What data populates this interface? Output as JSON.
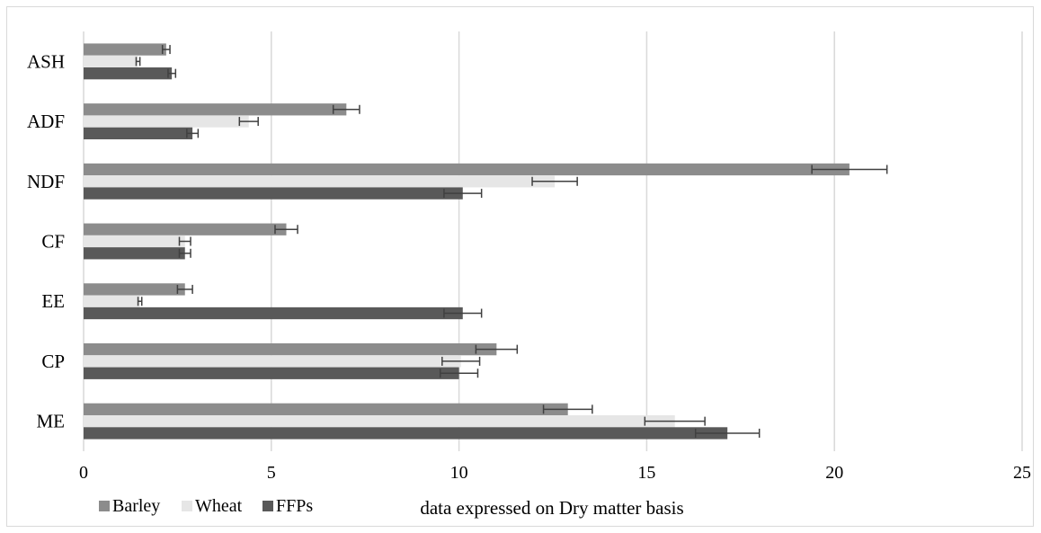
{
  "chart_data": {
    "type": "bar",
    "orientation": "horizontal",
    "title": "",
    "xlabel": "data expressed on Dry matter basis",
    "ylabel": "",
    "categories": [
      "ME",
      "CP",
      "EE",
      "CF",
      "NDF",
      "ADF",
      "ASH"
    ],
    "xlim": [
      0,
      25
    ],
    "xticks": [
      0,
      5,
      10,
      15,
      20,
      25
    ],
    "grid": "vertical",
    "legend": "bottom-left",
    "series": [
      {
        "name": "Barley",
        "color": "#8c8c8c",
        "values": [
          12.9,
          11.0,
          2.7,
          5.4,
          20.4,
          7.0,
          2.2
        ],
        "errors": [
          0.65,
          0.55,
          0.2,
          0.3,
          1.0,
          0.35,
          0.1
        ]
      },
      {
        "name": "Wheat",
        "color": "#e6e6e6",
        "values": [
          15.75,
          10.05,
          1.5,
          2.7,
          12.55,
          4.4,
          1.45
        ],
        "errors": [
          0.8,
          0.5,
          0.05,
          0.15,
          0.6,
          0.25,
          0.05
        ]
      },
      {
        "name": "FFPs",
        "color": "#595959",
        "values": [
          17.15,
          10.0,
          10.1,
          2.7,
          10.1,
          2.9,
          2.35
        ],
        "errors": [
          0.85,
          0.5,
          0.5,
          0.15,
          0.5,
          0.15,
          0.1
        ]
      }
    ]
  }
}
